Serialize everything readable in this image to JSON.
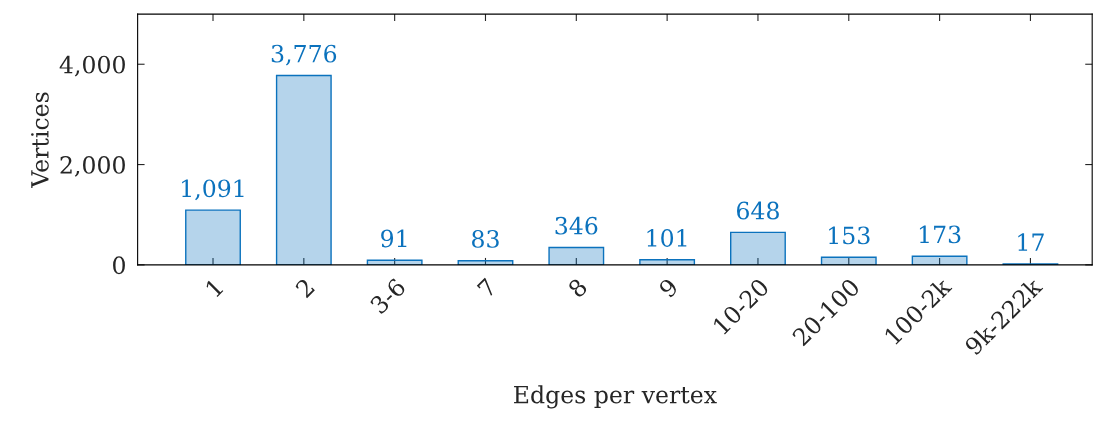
{
  "chart_data": {
    "type": "bar",
    "xlabel": "Edges per vertex",
    "ylabel": "Vertices",
    "categories": [
      "1",
      "2",
      "3-6",
      "7",
      "8",
      "9",
      "10-20",
      "20-100",
      "100-2k",
      "9k-222k"
    ],
    "values": [
      1091,
      3776,
      91,
      83,
      346,
      101,
      648,
      153,
      173,
      17
    ],
    "color": "#0b72bd",
    "value_labels": [
      "1,091",
      "3,776",
      "91",
      "83",
      "346",
      "101",
      "648",
      "153",
      "173",
      "17"
    ],
    "ylim": [
      0,
      5000
    ],
    "yticks": [
      {
        "value": 0,
        "label": "0"
      },
      {
        "value": 2000,
        "label": "2,000"
      },
      {
        "value": 4000,
        "label": "4,000"
      }
    ],
    "grid": false
  }
}
